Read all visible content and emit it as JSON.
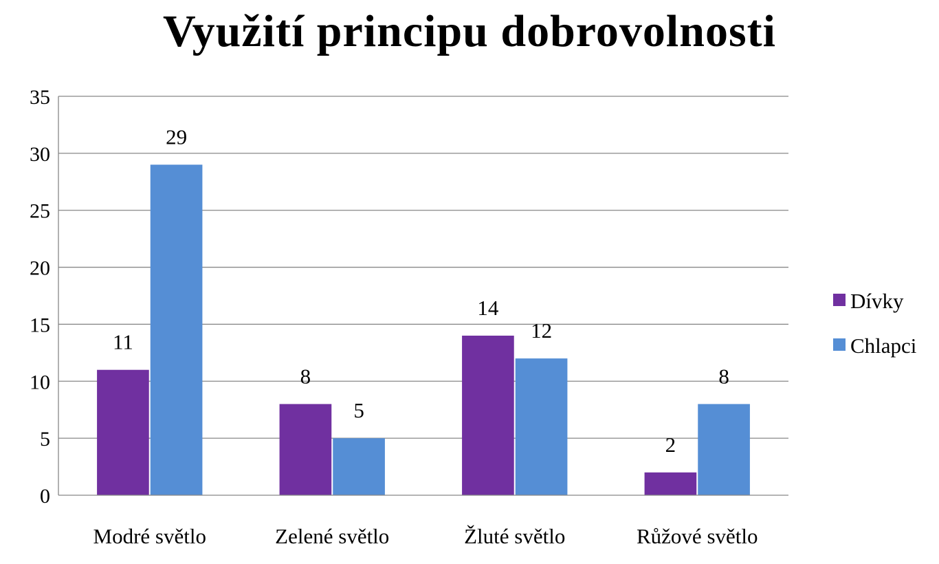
{
  "chart_data": {
    "type": "bar",
    "title": "Využití principu dobrovolnosti",
    "categories": [
      "Modré světlo",
      "Zelené světlo",
      "Žluté světlo",
      "Růžové světlo"
    ],
    "series": [
      {
        "name": "Dívky",
        "values": [
          11,
          8,
          14,
          2
        ],
        "color": "#7030a0"
      },
      {
        "name": "Chlapci",
        "values": [
          29,
          5,
          12,
          8
        ],
        "color": "#558ed5"
      }
    ],
    "ylim": [
      0,
      35
    ],
    "yticks": [
      "0",
      "5",
      "10",
      "15",
      "20",
      "25",
      "30",
      "35"
    ],
    "grid": true,
    "legend": "right",
    "data_labels": true
  }
}
